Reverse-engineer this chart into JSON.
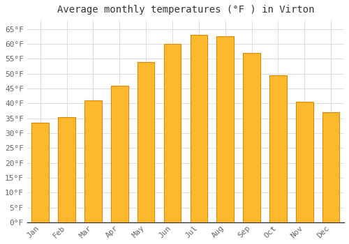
{
  "title": "Average monthly temperatures (°F ) in Virton",
  "months": [
    "Jan",
    "Feb",
    "Mar",
    "Apr",
    "May",
    "Jun",
    "Jul",
    "Aug",
    "Sep",
    "Oct",
    "Nov",
    "Dec"
  ],
  "values": [
    33.5,
    35.5,
    41,
    46,
    54,
    60,
    63,
    62.5,
    57,
    49.5,
    40.5,
    37
  ],
  "bar_color": "#FDB92E",
  "bar_edge_color": "#E08800",
  "ylim": [
    0,
    68
  ],
  "yticks": [
    0,
    5,
    10,
    15,
    20,
    25,
    30,
    35,
    40,
    45,
    50,
    55,
    60,
    65
  ],
  "ytick_labels": [
    "0°F",
    "5°F",
    "10°F",
    "15°F",
    "20°F",
    "25°F",
    "30°F",
    "35°F",
    "40°F",
    "45°F",
    "50°F",
    "55°F",
    "60°F",
    "65°F"
  ],
  "bg_color": "#FFFFFF",
  "plot_bg_color": "#FFFFFF",
  "grid_color": "#DDDDDD",
  "title_fontsize": 10,
  "tick_fontsize": 8,
  "label_color": "#666666",
  "title_color": "#333333",
  "spine_color": "#333333",
  "bar_width": 0.65
}
